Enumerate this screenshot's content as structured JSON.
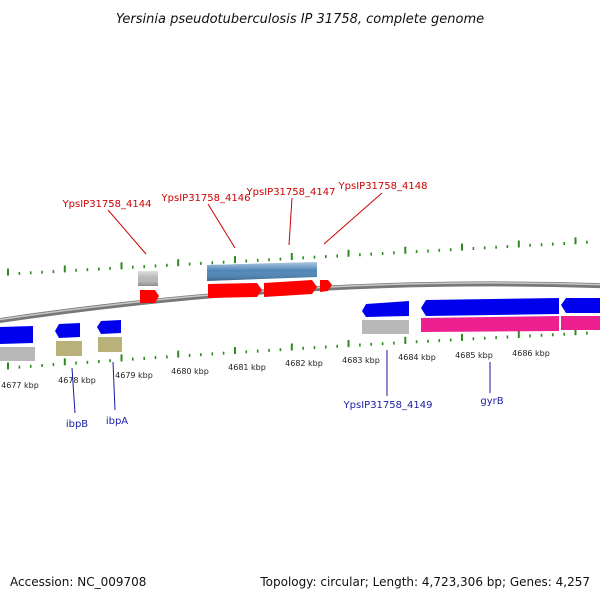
{
  "title": "Yersinia pseudotuberculosis IP 31758, complete genome",
  "footer": {
    "accession": "Accession: NC_009708",
    "summary": "Topology: circular; Length: 4,723,306 bp; Genes: 4,257"
  },
  "colors": {
    "tick_green": "#2d8a1f",
    "backbone": "#808080",
    "gene_red": "#ff0000",
    "gene_steel": "#4f86b8",
    "gene_blue": "#0000ee",
    "gene_gray": "#b8b8b8",
    "gene_olive": "#b8b27a",
    "gene_magenta": "#ee1f8f",
    "label_red": "#cc0000",
    "label_blue": "#1a1aa8"
  },
  "ticks": [
    "4677 kbp",
    "4678 kbp",
    "4679 kbp",
    "4680 kbp",
    "4681 kbp",
    "4682 kbp",
    "4683 kbp",
    "4684 kbp",
    "4685 kbp",
    "4686 kbp"
  ],
  "gene_labels_top": [
    "YpsIP31758_4144",
    "YpsIP31758_4146",
    "YpsIP31758_4147",
    "YpsIP31758_4148"
  ],
  "gene_labels_bottom": [
    "ibpB",
    "ibpA",
    "YpsIP31758_4149",
    "gyrB"
  ]
}
